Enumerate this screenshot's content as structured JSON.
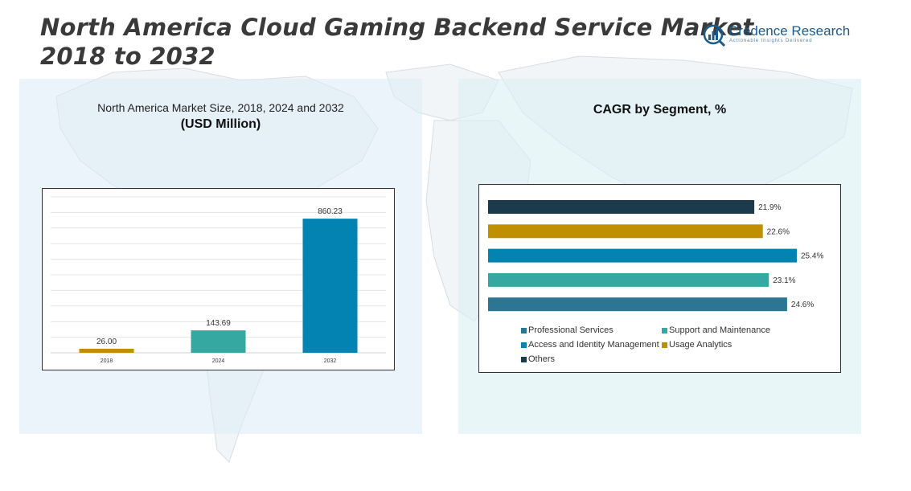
{
  "header": {
    "title_line1": "North America Cloud Gaming Backend Service Market",
    "title_line2": "2018 to 2032"
  },
  "logo": {
    "name": "Credence Research",
    "tagline": "Actionable Insights Delivered",
    "icon": "bar-chart-magnifier-icon",
    "color": "#1b5b8c"
  },
  "left_panel": {
    "subtitle": "North America Market Size, 2018, 2024 and 2032",
    "unit": "(USD Million)"
  },
  "right_panel": {
    "title": "CAGR by Segment, %"
  },
  "chart_data": [
    {
      "type": "bar",
      "orientation": "vertical",
      "categories": [
        "2018",
        "2024",
        "2032"
      ],
      "values": [
        26.0,
        143.69,
        860.23
      ],
      "value_labels": [
        "26.00",
        "143.69",
        "860.23"
      ],
      "colors": [
        "#bf8f00",
        "#35a9a1",
        "#0283b2"
      ],
      "ylim": [
        0,
        1000
      ],
      "grid": true,
      "grid_lines": 10
    },
    {
      "type": "bar",
      "orientation": "horizontal",
      "categories": [
        "Others",
        "Usage Analytics",
        "Access and Identity Management",
        "Support and Maintenance",
        "Professional Services"
      ],
      "values": [
        21.9,
        22.6,
        25.4,
        23.1,
        24.6
      ],
      "value_labels": [
        "21.9%",
        "22.6%",
        "25.4%",
        "23.1%",
        "24.6%"
      ],
      "colors": [
        "#1b3a4b",
        "#bf8f00",
        "#0283b2",
        "#35a9a1",
        "#2c7593"
      ],
      "xlim": [
        0,
        25.4
      ],
      "legend": {
        "position": "bottom",
        "entries": [
          {
            "label": "Professional Services",
            "color": "#2c7593"
          },
          {
            "label": "Support and Maintenance",
            "color": "#35a9a1"
          },
          {
            "label": "Access and Identity Management",
            "color": "#0283b2"
          },
          {
            "label": "Usage Analytics",
            "color": "#bf8f00"
          },
          {
            "label": "Others",
            "color": "#1b3a4b"
          }
        ]
      }
    }
  ]
}
